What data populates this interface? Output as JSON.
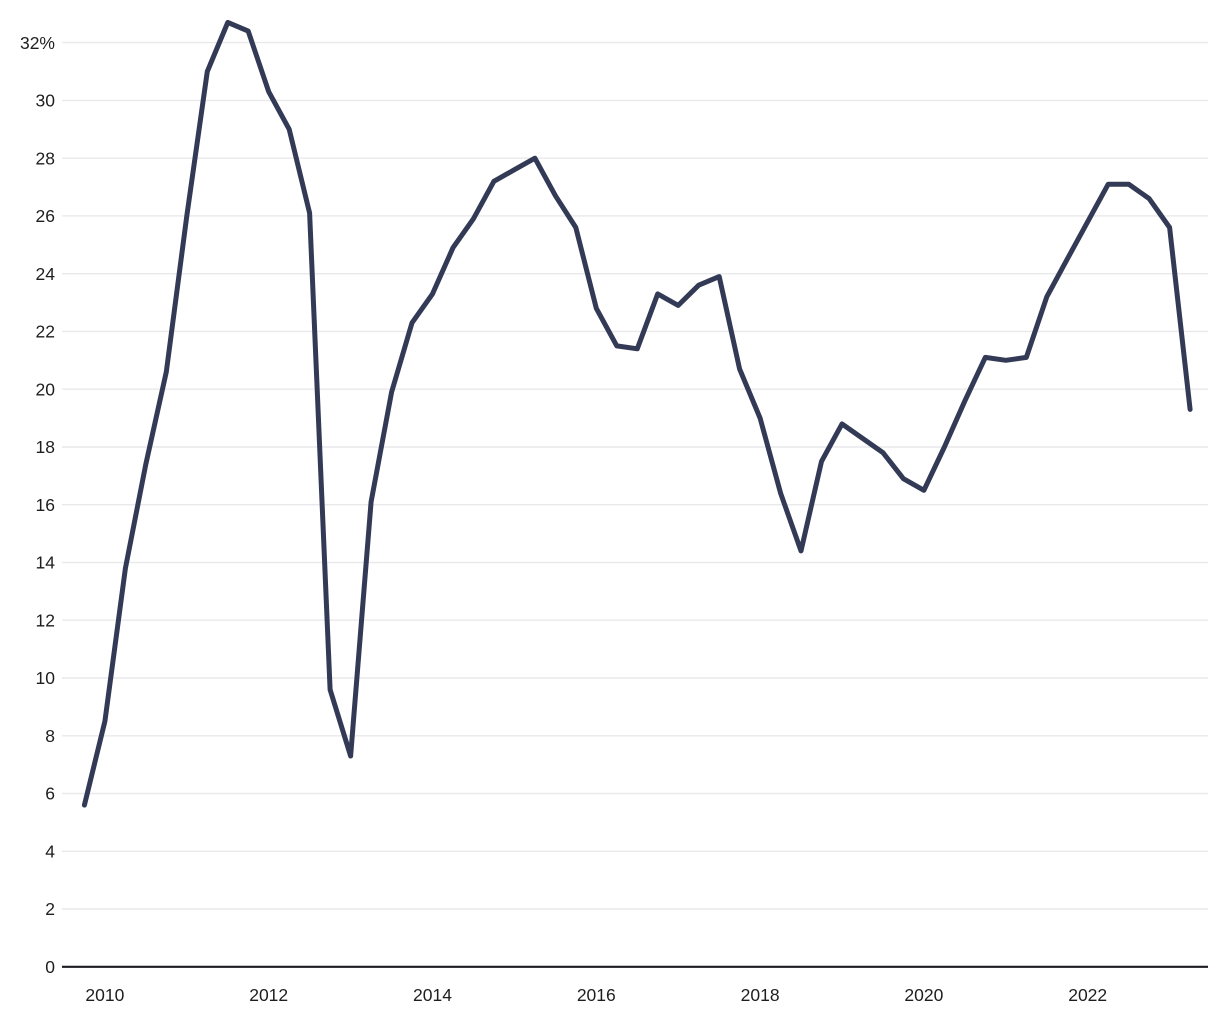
{
  "chart_data": {
    "type": "line",
    "title": "",
    "xlabel": "",
    "ylabel": "",
    "unit": "percent",
    "legend": "none",
    "grid": "horizontal-only",
    "x": [
      2009.75,
      2010.0,
      2010.25,
      2010.5,
      2010.75,
      2011.0,
      2011.25,
      2011.5,
      2011.75,
      2012.0,
      2012.25,
      2012.5,
      2012.75,
      2013.0,
      2013.25,
      2013.5,
      2013.75,
      2014.0,
      2014.25,
      2014.5,
      2014.75,
      2015.0,
      2015.25,
      2015.5,
      2015.75,
      2016.0,
      2016.25,
      2016.5,
      2016.75,
      2017.0,
      2017.25,
      2017.5,
      2017.75,
      2018.0,
      2018.25,
      2018.5,
      2018.75,
      2019.0,
      2019.25,
      2019.5,
      2019.75,
      2020.0,
      2020.25,
      2020.5,
      2020.75,
      2021.0,
      2021.25,
      2021.5,
      2021.75,
      2022.0,
      2022.25,
      2022.5,
      2022.75,
      2023.0,
      2023.25
    ],
    "values": [
      5.6,
      8.5,
      13.8,
      17.4,
      20.6,
      26.0,
      31.0,
      32.7,
      32.4,
      30.3,
      29.0,
      26.1,
      9.6,
      7.3,
      16.1,
      19.9,
      22.3,
      23.3,
      24.9,
      25.9,
      27.2,
      27.6,
      28.0,
      26.7,
      25.6,
      22.8,
      21.5,
      21.4,
      23.3,
      22.9,
      23.6,
      23.9,
      20.7,
      19.0,
      16.4,
      14.4,
      17.5,
      18.8,
      18.3,
      17.8,
      16.9,
      16.5,
      18.0,
      19.6,
      21.1,
      21.0,
      21.1,
      23.2,
      24.5,
      25.8,
      27.1,
      27.1,
      26.6,
      25.6,
      19.3
    ],
    "x_ticks": [
      2010,
      2012,
      2014,
      2016,
      2018,
      2020,
      2022
    ],
    "x_tick_labels": [
      "2010",
      "2012",
      "2014",
      "2016",
      "2018",
      "2020",
      "2022"
    ],
    "y_ticks": [
      0,
      2,
      4,
      6,
      8,
      10,
      12,
      14,
      16,
      18,
      20,
      22,
      24,
      26,
      28,
      30,
      32
    ],
    "y_tick_labels": [
      "0",
      "2",
      "4",
      "6",
      "8",
      "10",
      "12",
      "14",
      "16",
      "18",
      "20",
      "22",
      "24",
      "26",
      "28",
      "30",
      "32%"
    ],
    "ylim": [
      0,
      33.2
    ],
    "xlim": [
      2009.6,
      2023.5
    ],
    "colors": {
      "line": "#333a56",
      "gridline": "#e9e9eb",
      "axis": "#1b1c21",
      "tick_label": "#1e1e1e",
      "background": "#ffffff"
    }
  }
}
